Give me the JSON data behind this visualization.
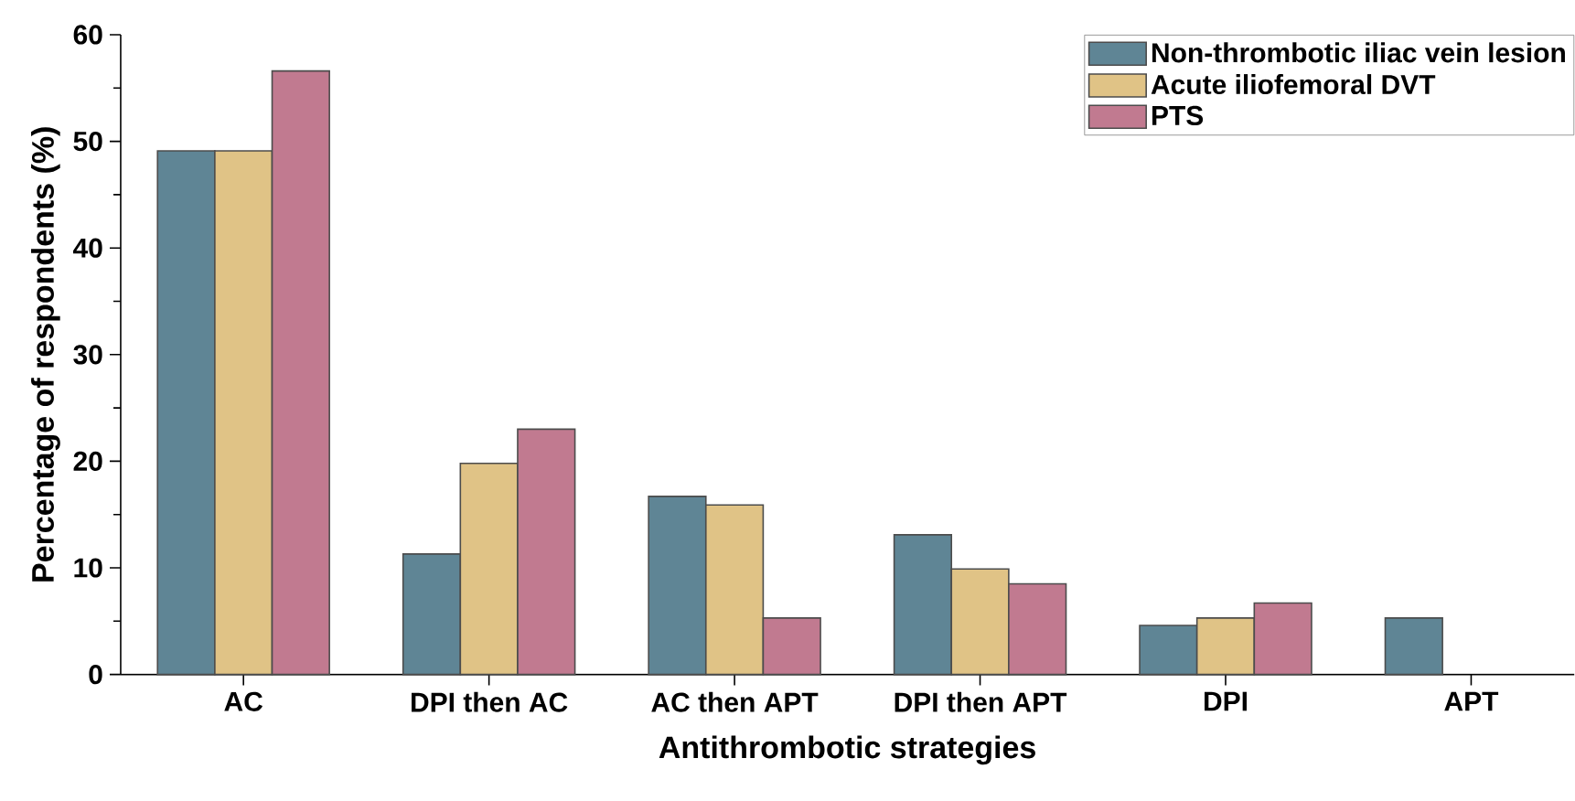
{
  "chart_data": {
    "type": "bar",
    "xlabel": "Antithrombotic strategies",
    "ylabel": "Percentage of respondents (%)",
    "categories": [
      "AC",
      "DPI  then AC",
      "AC then APT",
      "DPI  then APT",
      "DPI",
      "APT"
    ],
    "series": [
      {
        "name": "Non-thrombotic iliac vein lesion",
        "color": "#5f8595",
        "values": [
          49.1,
          11.3,
          16.7,
          13.1,
          4.6,
          5.3
        ]
      },
      {
        "name": "Acute iliofemoral DVT",
        "color": "#e0c386",
        "values": [
          49.1,
          19.8,
          15.9,
          9.9,
          5.3,
          null
        ]
      },
      {
        "name": "PTS",
        "color": "#c17a90",
        "values": [
          56.6,
          23.0,
          5.3,
          8.5,
          6.7,
          null
        ]
      }
    ],
    "ylim": [
      0,
      60
    ],
    "yticks": [
      0,
      10,
      20,
      30,
      40,
      50,
      60
    ],
    "grid": false,
    "legend": "top right"
  }
}
